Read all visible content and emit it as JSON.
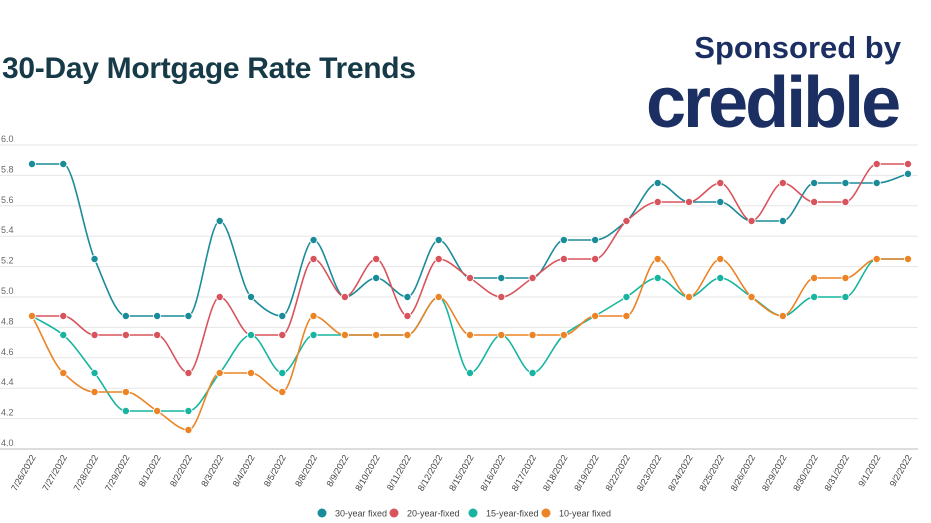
{
  "title": "30-Day Mortgage Rate Trends",
  "sponsor": {
    "text": "Sponsored by",
    "brand": "credible"
  },
  "chart_data": {
    "type": "line",
    "categories": [
      "7/26/2022",
      "7/27/2022",
      "7/28/2022",
      "7/29/2022",
      "8/1/2022",
      "8/2/2022",
      "8/3/2022",
      "8/4/2022",
      "8/5/2022",
      "8/8/2022",
      "8/9/2022",
      "8/10/2022",
      "8/11/2022",
      "8/12/2022",
      "8/15/2022",
      "8/16/2022",
      "8/17/2022",
      "8/18/2022",
      "8/19/2022",
      "8/22/2022",
      "8/23/2022",
      "8/24/2022",
      "8/25/2022",
      "8/26/2022",
      "8/29/2022",
      "8/30/2022",
      "8/31/2022",
      "9/1/2022",
      "9/2/2022"
    ],
    "ylim": [
      4.0,
      6.0
    ],
    "yticks": [
      "4.0",
      "4.2",
      "4.4",
      "4.6",
      "4.8",
      "5.0",
      "5.2",
      "5.4",
      "5.6",
      "5.8",
      "6.0"
    ],
    "grid": true,
    "legend": "bottom",
    "series": [
      {
        "name": "30-year fixed",
        "color": "#1a8c99",
        "values": [
          5.875,
          5.875,
          5.25,
          4.875,
          4.875,
          4.875,
          5.5,
          5.0,
          4.875,
          5.375,
          5.0,
          5.125,
          5.0,
          5.375,
          5.125,
          5.125,
          5.125,
          5.375,
          5.375,
          5.5,
          5.75,
          5.625,
          5.625,
          5.5,
          5.5,
          5.75,
          5.75,
          5.75,
          5.81
        ]
      },
      {
        "name": "20-year-fixed",
        "color": "#d8535c",
        "values": [
          4.875,
          4.875,
          4.75,
          4.75,
          4.75,
          4.5,
          5.0,
          4.75,
          4.75,
          5.25,
          5.0,
          5.25,
          4.875,
          5.25,
          5.125,
          5.0,
          5.125,
          5.25,
          5.25,
          5.5,
          5.625,
          5.625,
          5.75,
          5.5,
          5.75,
          5.625,
          5.625,
          5.875,
          5.875
        ]
      },
      {
        "name": "15-year-fixed",
        "color": "#17b5a0",
        "values": [
          4.875,
          4.75,
          4.5,
          4.25,
          4.25,
          4.25,
          4.5,
          4.75,
          4.5,
          4.75,
          4.75,
          4.75,
          4.75,
          5.0,
          4.5,
          4.75,
          4.5,
          4.75,
          4.875,
          5.0,
          5.125,
          5.0,
          5.125,
          5.0,
          4.875,
          5.0,
          5.0,
          5.25,
          5.25
        ]
      },
      {
        "name": "10-year fixed",
        "color": "#ec8325",
        "values": [
          4.875,
          4.5,
          4.375,
          4.375,
          4.25,
          4.125,
          4.5,
          4.5,
          4.375,
          4.875,
          4.75,
          4.75,
          4.75,
          5.0,
          4.75,
          4.75,
          4.75,
          4.75,
          4.875,
          4.875,
          5.25,
          5.0,
          5.25,
          5.0,
          4.875,
          5.125,
          5.125,
          5.25,
          5.25
        ]
      }
    ]
  }
}
